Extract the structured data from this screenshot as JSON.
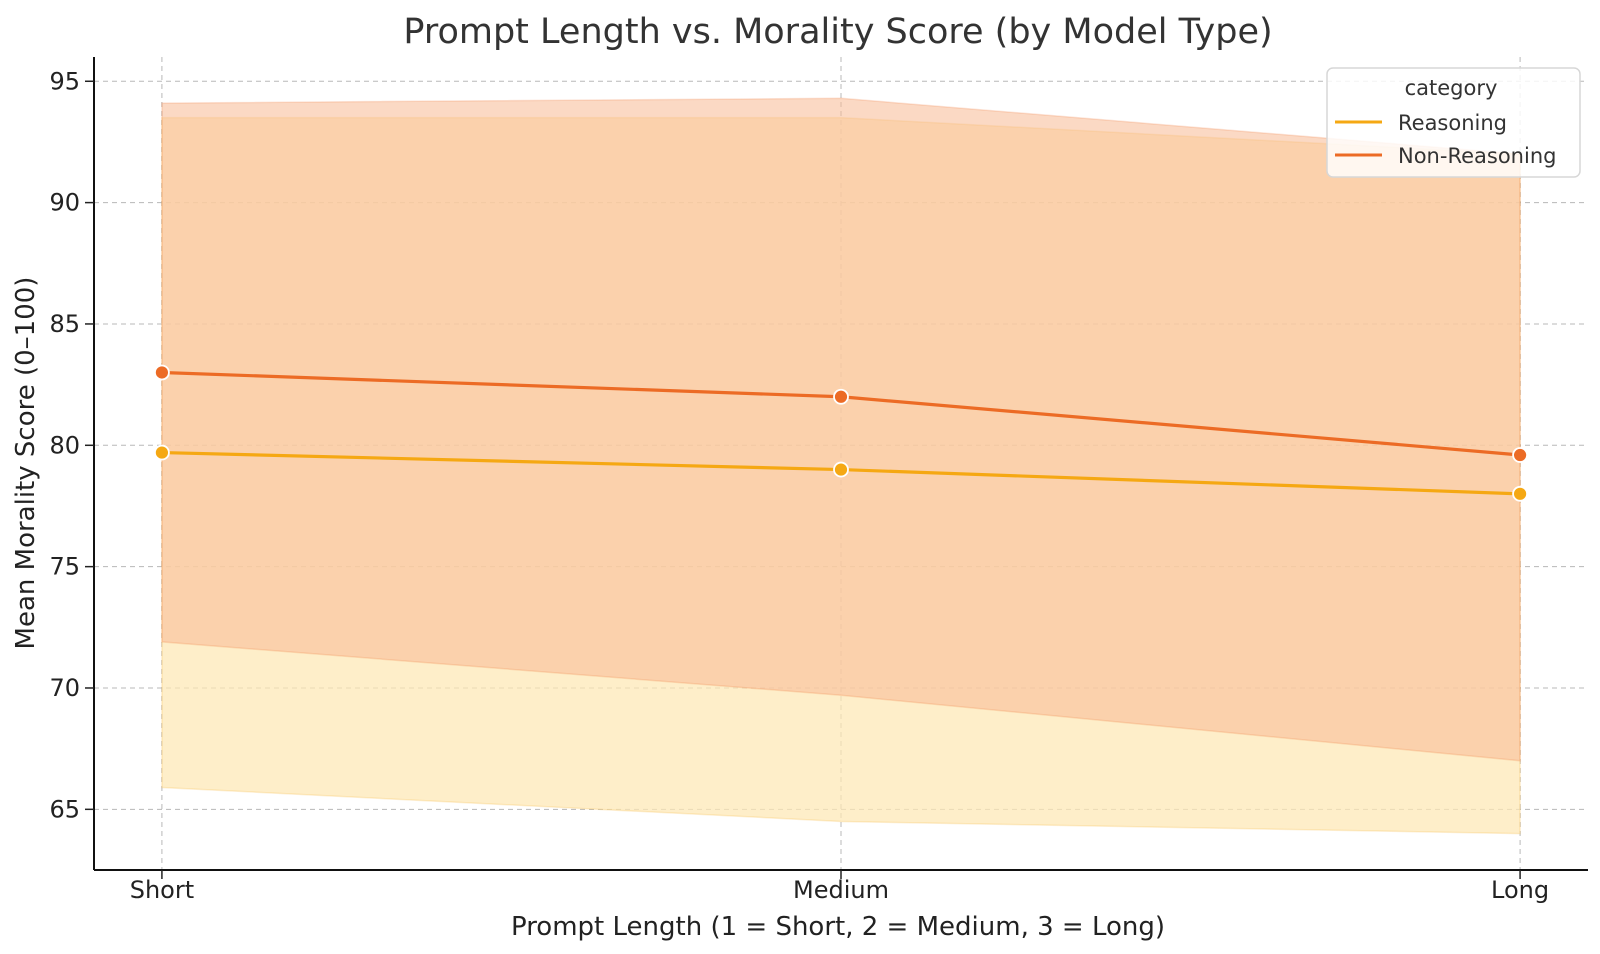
{
  "chart_data": {
    "type": "line",
    "title": "Prompt Length vs. Morality Score (by Model Type)",
    "xlabel": "Prompt Length (1 = Short, 2 = Medium, 3 = Long)",
    "ylabel": "Mean Morality Score (0–100)",
    "categories": [
      "Short",
      "Medium",
      "Long"
    ],
    "x": [
      1,
      2,
      3
    ],
    "xlim": [
      0.9,
      3.1
    ],
    "ylim": [
      62.5,
      96
    ],
    "yticks": [
      65,
      70,
      75,
      80,
      85,
      90,
      95
    ],
    "grid": true,
    "legend": {
      "title": "category",
      "position": "top-right"
    },
    "series": [
      {
        "name": "Reasoning",
        "color": "#f5a813",
        "band_color": "#fde7b4",
        "values": [
          79.7,
          79.0,
          78.0
        ],
        "lower": [
          65.9,
          64.5,
          64.0
        ],
        "upper": [
          93.5,
          93.5,
          92.0
        ]
      },
      {
        "name": "Non-Reasoning",
        "color": "#ec6b25",
        "band_color": "#f7ba93",
        "values": [
          83.0,
          82.0,
          79.6
        ],
        "lower": [
          71.9,
          69.7,
          67.0
        ],
        "upper": [
          94.1,
          94.3,
          92.0
        ]
      }
    ]
  }
}
